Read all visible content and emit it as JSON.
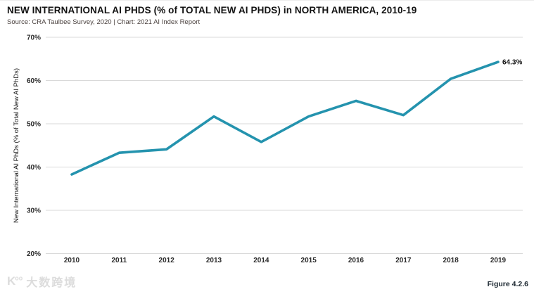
{
  "header": {
    "title": "NEW INTERNATIONAL AI PHDS (% of TOTAL NEW AI PHDS) in NORTH AMERICA, 2010-19",
    "source": "Source: CRA Taulbee Survey, 2020 | Chart: 2021 AI Index Report"
  },
  "chart_data": {
    "type": "line",
    "title": "NEW INTERNATIONAL AI PHDS (% of TOTAL NEW AI PHDS) in NORTH AMERICA, 2010-19",
    "x": [
      "2010",
      "2011",
      "2012",
      "2013",
      "2014",
      "2015",
      "2016",
      "2017",
      "2018",
      "2019"
    ],
    "values": [
      38.3,
      43.3,
      44.1,
      51.7,
      45.8,
      51.7,
      55.3,
      52.0,
      60.4,
      64.3
    ],
    "end_label": "64.3%",
    "xlabel": "",
    "ylabel": "New International AI PhDs (% of Total New AI PhDs)",
    "ylim": [
      20,
      70
    ],
    "yticks": [
      20,
      30,
      40,
      50,
      60,
      70
    ],
    "ytick_suffix": "%",
    "grid": true,
    "legend": "none",
    "line_color": "#2493ae",
    "grid_color": "#d9d9d9",
    "tick_color": "#2a2a2a",
    "label_color": "#1a1a1a"
  },
  "footer": {
    "figure_label": "Figure 4.2.6",
    "watermark_logo": "K",
    "watermark_logo_sup": "oo",
    "watermark": "大数跨境"
  }
}
